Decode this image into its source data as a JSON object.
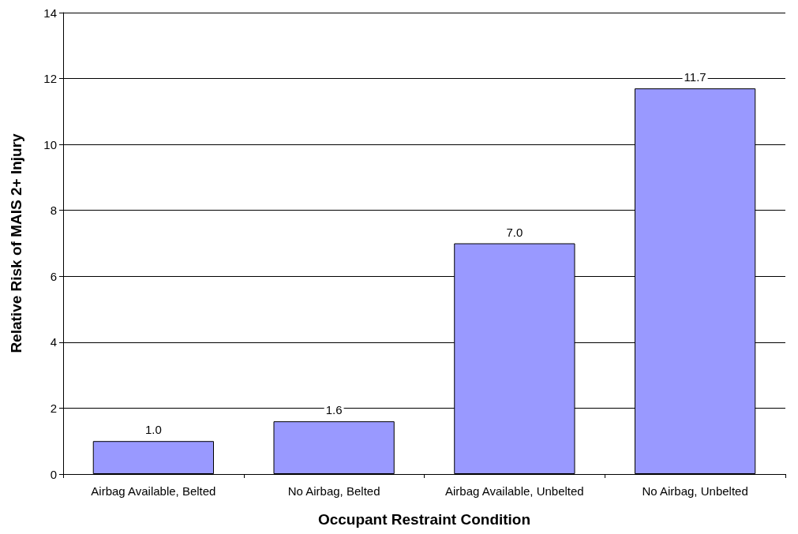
{
  "chart_data": {
    "type": "bar",
    "xlabel": "Occupant Restraint Condition",
    "ylabel": "Relative Risk of MAIS 2+ Injury",
    "categories": [
      "Airbag Available, Belted",
      "No Airbag, Belted",
      "Airbag Available, Unbelted",
      "No Airbag, Unbelted"
    ],
    "values": [
      1.0,
      1.6,
      7.0,
      11.7
    ],
    "value_labels": [
      "1.0",
      "1.6",
      "7.0",
      "11.7"
    ],
    "color": "#9999ff",
    "ylim": [
      0,
      14
    ],
    "yticks": [
      0,
      2,
      4,
      6,
      8,
      10,
      12,
      14
    ],
    "grid": "y"
  }
}
